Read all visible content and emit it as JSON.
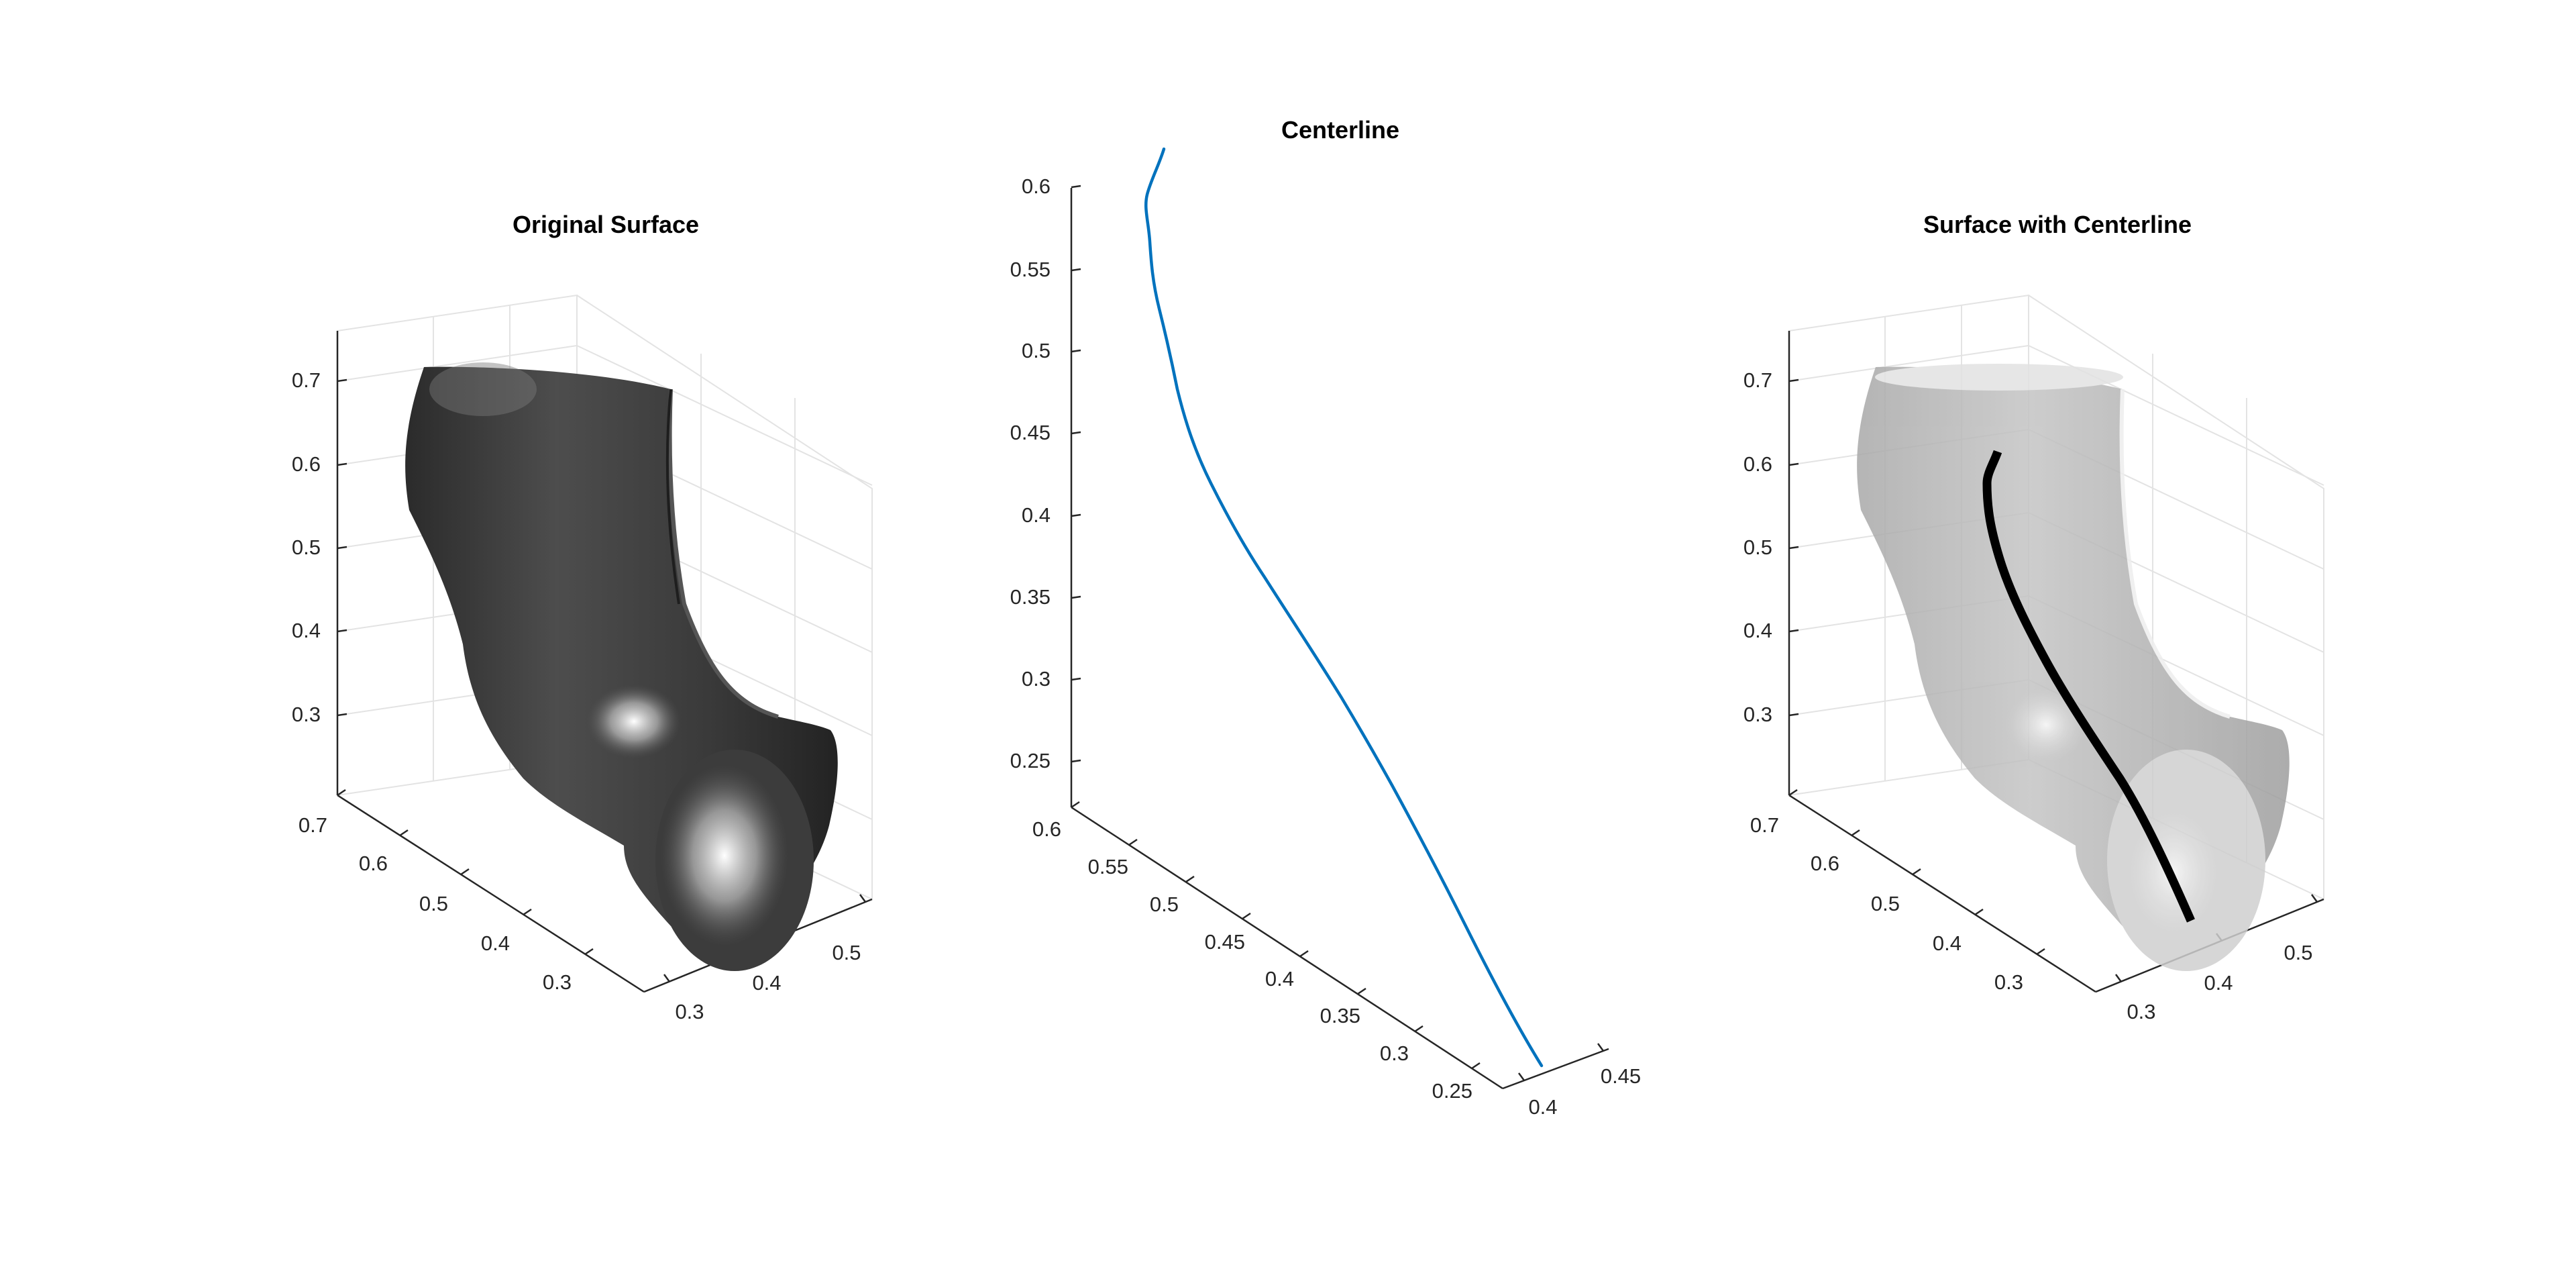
{
  "chart_data": [
    {
      "type": "surface3d",
      "title": "Original Surface",
      "xlabel": "",
      "ylabel": "",
      "zlabel": "",
      "surface_color": "#5a5a5a",
      "x_ticks": [
        "0.3",
        "0.4",
        "0.5"
      ],
      "y_ticks": [
        "0.7",
        "0.6",
        "0.5",
        "0.4",
        "0.3"
      ],
      "z_ticks": [
        "0.7",
        "0.6",
        "0.5",
        "0.4",
        "0.3"
      ],
      "grid": true
    },
    {
      "type": "line3d",
      "title": "Centerline",
      "xlabel": "",
      "ylabel": "",
      "zlabel": "",
      "line_color": "#0072bd",
      "x_ticks": [
        "0.4",
        "0.45"
      ],
      "y_ticks": [
        "0.6",
        "0.55",
        "0.5",
        "0.45",
        "0.4",
        "0.35",
        "0.3",
        "0.25"
      ],
      "z_ticks": [
        "0.6",
        "0.55",
        "0.5",
        "0.45",
        "0.4",
        "0.35",
        "0.3",
        "0.25"
      ],
      "grid": false
    },
    {
      "type": "surface3d",
      "title": "Surface with Centerline",
      "xlabel": "",
      "ylabel": "",
      "zlabel": "",
      "surface_color": "#bdbdbd",
      "line_color": "#000000",
      "x_ticks": [
        "0.3",
        "0.4",
        "0.5"
      ],
      "y_ticks": [
        "0.7",
        "0.6",
        "0.5",
        "0.4",
        "0.3"
      ],
      "z_ticks": [
        "0.7",
        "0.6",
        "0.5",
        "0.4",
        "0.3"
      ],
      "grid": true
    }
  ]
}
